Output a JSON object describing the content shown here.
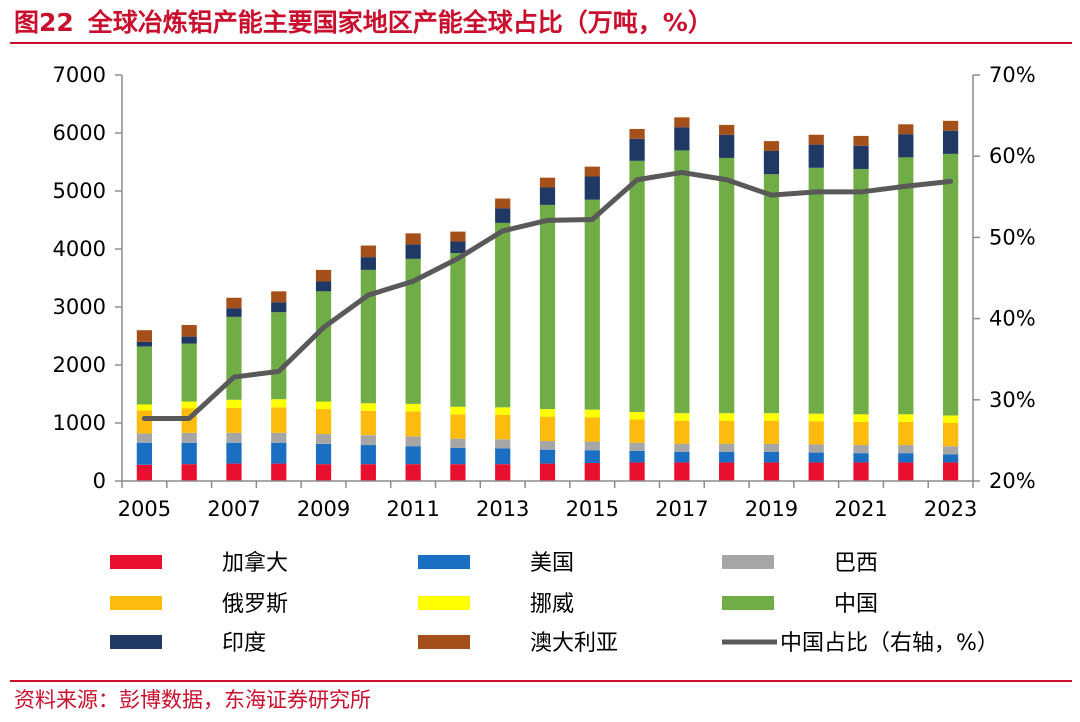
{
  "header": {
    "figure_number": "图22",
    "title": "全球冶炼铝产能主要国家地区产能全球占比（万吨，%）"
  },
  "source": "资料来源：彭博数据，东海证券研究所",
  "chart_data": {
    "type": "bar",
    "stacked": true,
    "years": [
      2005,
      2006,
      2007,
      2008,
      2009,
      2010,
      2011,
      2012,
      2013,
      2014,
      2015,
      2016,
      2017,
      2018,
      2019,
      2020,
      2021,
      2022,
      2023
    ],
    "x_tick_labels": [
      "2005",
      "2007",
      "2009",
      "2011",
      "2013",
      "2015",
      "2017",
      "2019",
      "2021",
      "2023"
    ],
    "y_left": {
      "min": 0,
      "max": 7000,
      "step": 1000,
      "ticks": [
        "0",
        "1000",
        "2000",
        "3000",
        "4000",
        "5000",
        "6000",
        "7000"
      ]
    },
    "y_right": {
      "min": 20,
      "max": 70,
      "step": 10,
      "ticks": [
        "20%",
        "30%",
        "40%",
        "50%",
        "60%",
        "70%"
      ]
    },
    "series": [
      {
        "name": "加拿大",
        "color": "#e8102e",
        "values": [
          280,
          290,
          300,
          300,
          290,
          290,
          290,
          290,
          290,
          300,
          310,
          320,
          320,
          320,
          320,
          320,
          320,
          320,
          320
        ]
      },
      {
        "name": "美国",
        "color": "#1a6fc2",
        "values": [
          380,
          370,
          360,
          360,
          350,
          330,
          310,
          280,
          270,
          240,
          220,
          200,
          180,
          180,
          180,
          170,
          160,
          160,
          140
        ]
      },
      {
        "name": "巴西",
        "color": "#a6a6a6",
        "values": [
          160,
          170,
          170,
          170,
          170,
          170,
          170,
          160,
          160,
          150,
          150,
          140,
          140,
          140,
          140,
          140,
          140,
          140,
          140
        ]
      },
      {
        "name": "俄罗斯",
        "color": "#fdbb0e",
        "values": [
          400,
          420,
          430,
          440,
          430,
          420,
          430,
          420,
          420,
          420,
          420,
          400,
          400,
          400,
          400,
          400,
          400,
          400,
          400
        ]
      },
      {
        "name": "挪威",
        "color": "#ffff00",
        "values": [
          100,
          120,
          140,
          140,
          130,
          130,
          130,
          130,
          130,
          130,
          130,
          130,
          130,
          130,
          130,
          130,
          130,
          130,
          130
        ]
      },
      {
        "name": "中国",
        "color": "#70ad47",
        "values": [
          1000,
          1000,
          1430,
          1500,
          1900,
          2300,
          2500,
          2650,
          3180,
          3520,
          3620,
          4330,
          4530,
          4400,
          4120,
          4240,
          4230,
          4430,
          4510
        ]
      },
      {
        "name": "印度",
        "color": "#203864",
        "values": [
          80,
          120,
          150,
          170,
          170,
          220,
          250,
          200,
          250,
          300,
          400,
          380,
          400,
          400,
          400,
          400,
          400,
          400,
          400
        ]
      },
      {
        "name": "澳大利亚",
        "color": "#a5501a",
        "values": [
          200,
          200,
          180,
          190,
          200,
          200,
          190,
          170,
          170,
          170,
          170,
          170,
          170,
          170,
          170,
          170,
          170,
          170,
          170
        ]
      }
    ],
    "line": {
      "name": "中国占比（右轴，%）",
      "color": "#595959",
      "values": [
        27.7,
        27.7,
        32.8,
        33.5,
        38.9,
        42.9,
        44.6,
        47.4,
        50.8,
        52.1,
        52.2,
        57.1,
        58.0,
        57.1,
        55.2,
        55.6,
        55.6,
        56.3,
        56.9
      ]
    }
  }
}
